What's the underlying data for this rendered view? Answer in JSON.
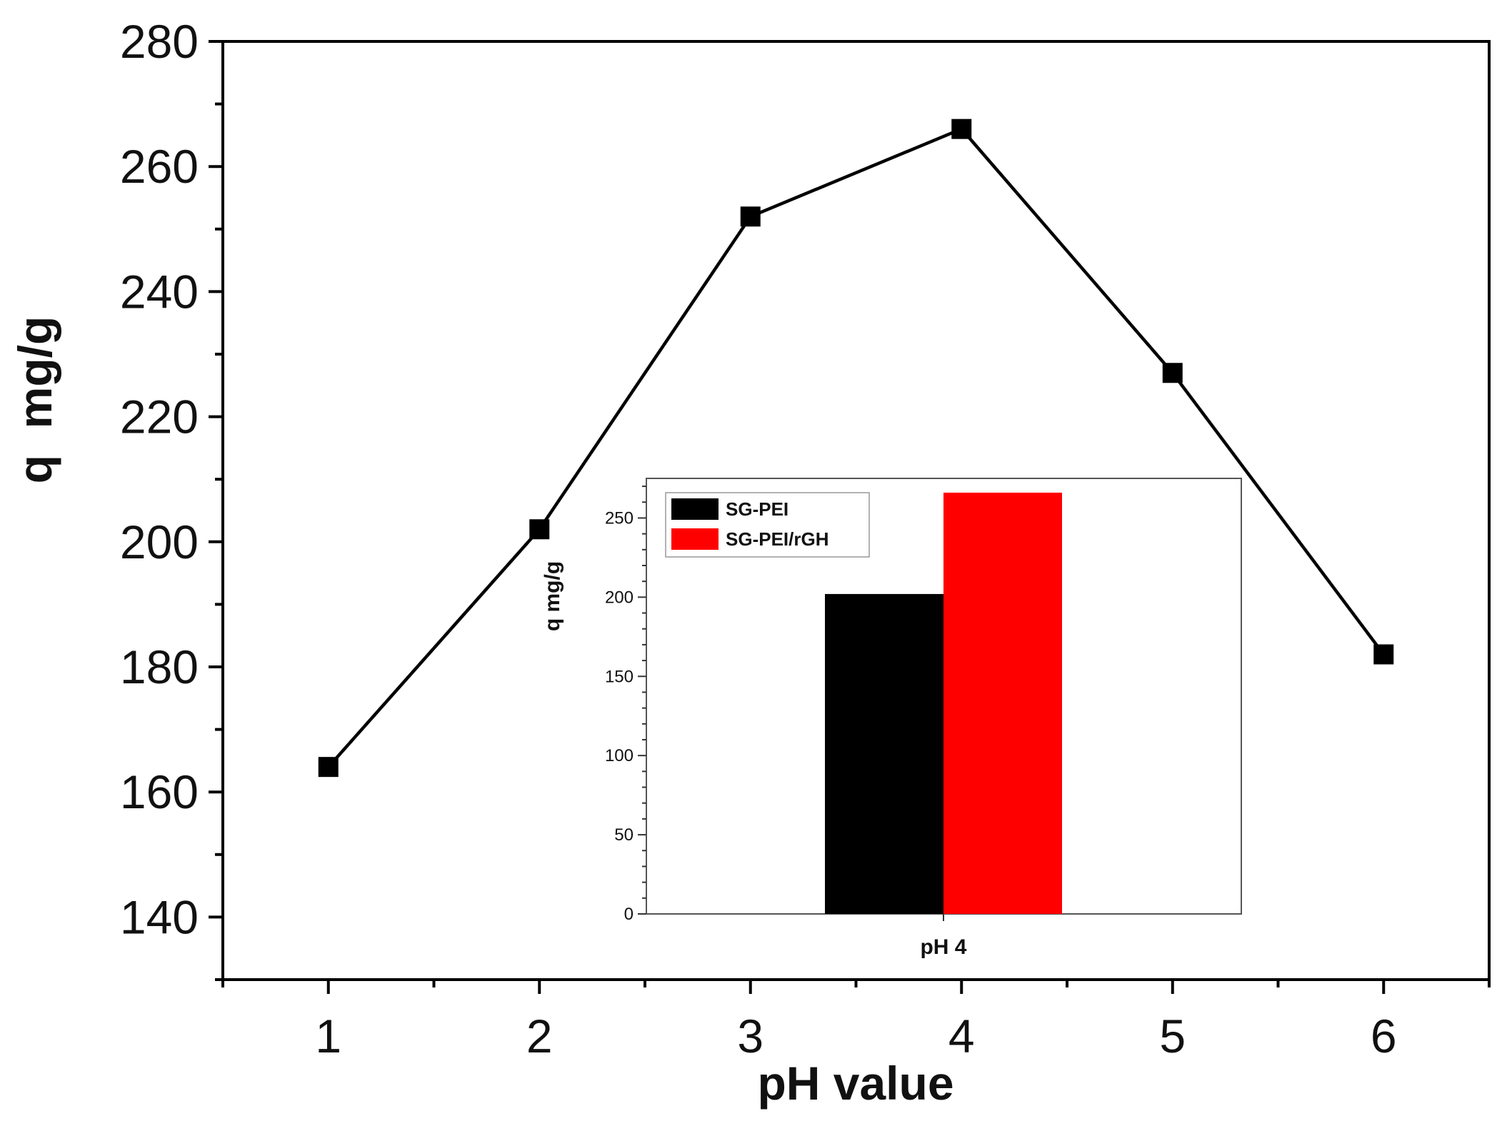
{
  "chart_data": [
    {
      "type": "line",
      "xlabel": "pH value",
      "ylabel": "q  mg/g",
      "xlim": [
        0.5,
        6.5
      ],
      "ylim": [
        130,
        280
      ],
      "x_ticks": [
        1,
        2,
        3,
        4,
        5,
        6
      ],
      "y_ticks": [
        140,
        160,
        180,
        200,
        220,
        240,
        260,
        280
      ],
      "grid": false,
      "series": [
        {
          "x": [
            1,
            2,
            3,
            4,
            5,
            6
          ],
          "y": [
            164,
            202,
            252,
            266,
            227,
            182
          ],
          "color": "#000000",
          "marker": "square"
        }
      ]
    },
    {
      "type": "bar",
      "inset": true,
      "categories": [
        "pH 4"
      ],
      "ylabel": "q mg/g",
      "ylim": [
        0,
        275
      ],
      "y_ticks": [
        0,
        50,
        100,
        150,
        200,
        250
      ],
      "legend_position": "top-left",
      "series": [
        {
          "name": "SG-PEI",
          "values": [
            202
          ],
          "color": "#000000"
        },
        {
          "name": "SG-PEI/rGH",
          "values": [
            266
          ],
          "color": "#ff0000"
        }
      ]
    }
  ]
}
